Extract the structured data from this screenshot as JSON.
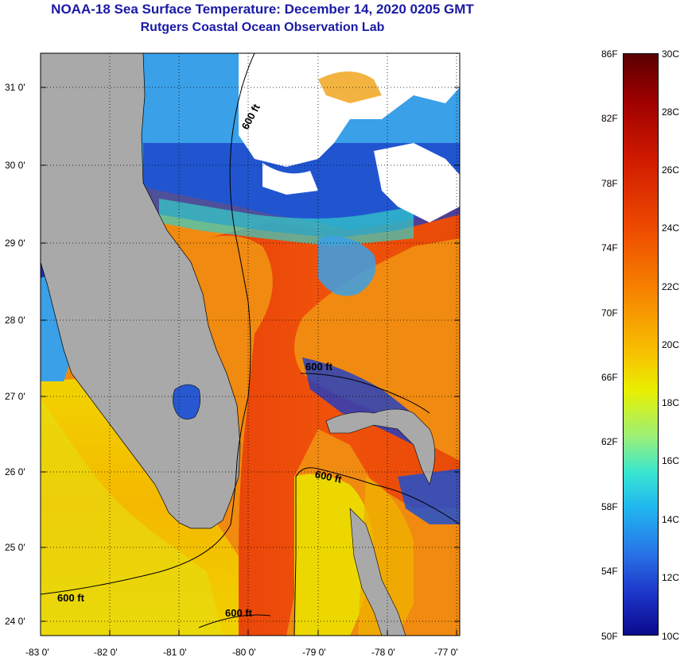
{
  "title": {
    "line1": "NOAA-18 Sea Surface Temperature:  December 14, 2020 0205 GMT",
    "line2": "Rutgers Coastal Ocean Observation Lab"
  },
  "map": {
    "lat_labels": [
      "31 0'",
      "30 0'",
      "29 0'",
      "28 0'",
      "27 0'",
      "26 0'",
      "25 0'",
      "24 0'"
    ],
    "lon_labels": [
      "-83 0'",
      "-82 0'",
      "-81 0'",
      "-80 0'",
      "-79 0'",
      "-78 0'",
      "-77 0'"
    ],
    "contour_labels": [
      "600 ft",
      "600 ft",
      "600 ft",
      "600 ft",
      "600 ft"
    ]
  },
  "colorbar": {
    "fahrenheit_labels": [
      "86F",
      "82F",
      "78F",
      "74F",
      "70F",
      "66F",
      "62F",
      "58F",
      "54F",
      "50F"
    ],
    "celsius_labels": [
      "30C",
      "28C",
      "26C",
      "24C",
      "22C",
      "20C",
      "18C",
      "16C",
      "14C",
      "12C",
      "10C"
    ]
  },
  "colors": {
    "title": "#1a1aa6",
    "land": "#a9a9a9",
    "cloud": "#ffffff"
  }
}
